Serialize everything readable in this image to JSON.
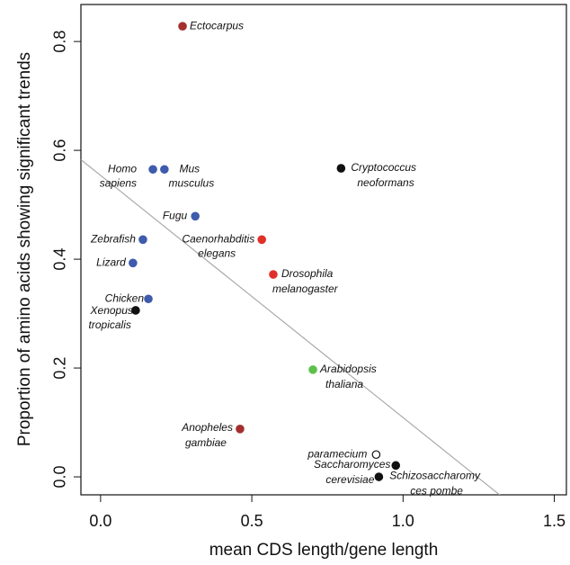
{
  "chart_data": {
    "type": "scatter",
    "x_label": "mean CDS length/gene length",
    "y_label": "Proportion of amino acids showing significant trends",
    "xlim": [
      -0.065,
      1.54
    ],
    "ylim": [
      -0.033,
      0.868
    ],
    "xticks": [
      {
        "value": 0,
        "label": "0.0"
      },
      {
        "value": 0.5,
        "label": "0.5"
      },
      {
        "value": 1,
        "label": "1.0"
      },
      {
        "value": 1.5,
        "label": "1.5"
      }
    ],
    "yticks": [
      {
        "value": 0,
        "label": "0.0"
      },
      {
        "value": 0.2,
        "label": "0.2"
      },
      {
        "value": 0.4,
        "label": "0.4"
      },
      {
        "value": 0.6,
        "label": "0.6"
      },
      {
        "value": 0.8,
        "label": "0.8"
      }
    ],
    "labels": [
      [
        "Ectocarpus"
      ],
      [
        "Homo",
        "sapiens"
      ],
      [
        "Mus",
        "musculus"
      ],
      [
        "Fugu"
      ],
      [
        "Zebrafish"
      ],
      [
        "Lizard"
      ],
      [
        "Chicken"
      ],
      [
        "Xenopus",
        "tropicalis"
      ],
      [
        "Caenorhabditis",
        "elegans"
      ],
      [
        "Drosophila",
        "melanogaster"
      ],
      [
        "Cryptococcus",
        "neoformans"
      ],
      [
        "Arabidopsis",
        "thaliana"
      ],
      [
        "Anopheles",
        "gambiae"
      ],
      [
        "paramecium"
      ],
      [
        "Saccharomyces",
        "cerevisiae"
      ],
      [
        "Schizosaccharomy",
        "ces pombe"
      ]
    ],
    "x": [
      0.271,
      0.173,
      0.211,
      0.313,
      0.14,
      0.107,
      0.158,
      0.116,
      0.533,
      0.571,
      0.795,
      0.702,
      0.461,
      0.911,
      0.92,
      0.976
    ],
    "values": [
      0.828,
      0.565,
      0.565,
      0.479,
      0.436,
      0.393,
      0.327,
      0.306,
      0.436,
      0.372,
      0.567,
      0.197,
      0.088,
      0.041,
      0.0,
      0.021
    ],
    "colors": [
      "#a3302e",
      "#3f5bad",
      "#3f5bad",
      "#3f5bad",
      "#3f5bad",
      "#3f5bad",
      "#3f5bad",
      "#111111",
      "#e0302a",
      "#e0302a",
      "#111111",
      "#5cc14a",
      "#a3302e",
      "#ffffff",
      "#111111",
      "#111111"
    ],
    "trend_line": {
      "intercept": 0.554,
      "slope": -0.445,
      "color": "#aaaaaa"
    }
  }
}
